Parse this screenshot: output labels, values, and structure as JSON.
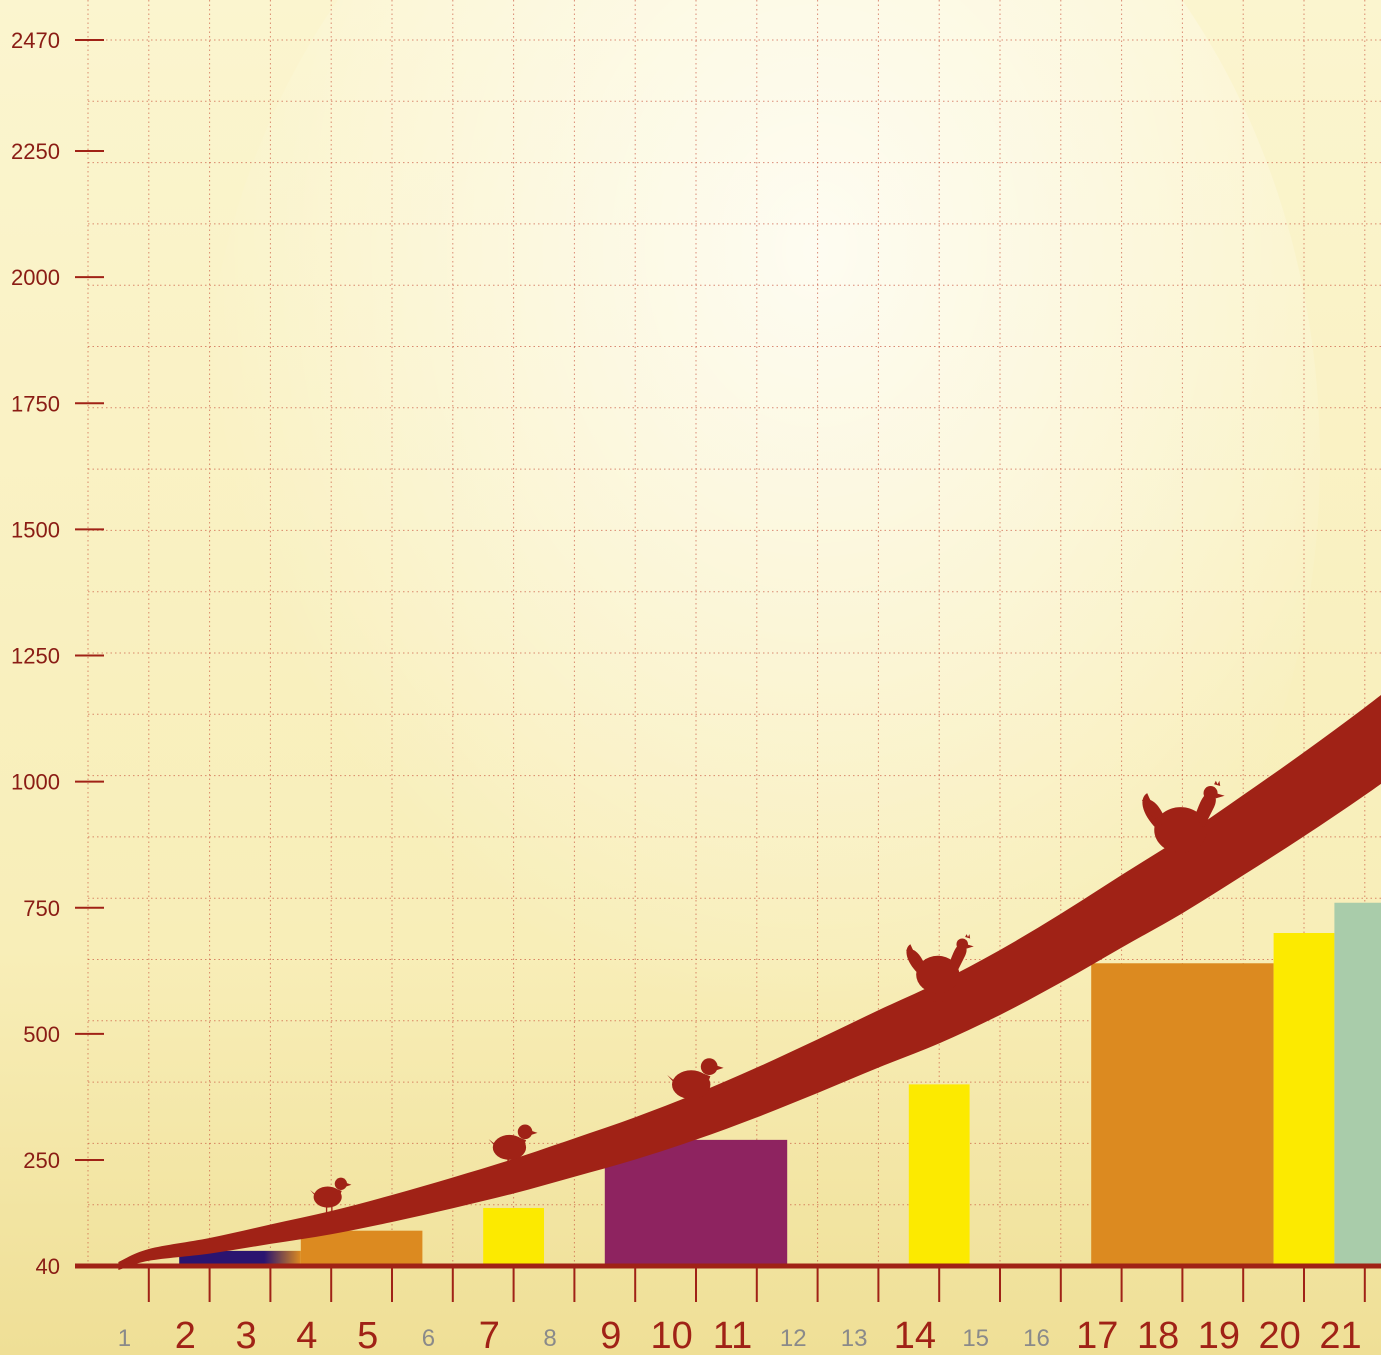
{
  "chart_data": {
    "type": "area",
    "title": "",
    "xlabel": "",
    "ylabel": "",
    "grid": true,
    "ylim": [
      40,
      2470
    ],
    "y_ticks": [
      "40",
      "250",
      "500",
      "750",
      "1000",
      "1250",
      "1500",
      "1750",
      "2000",
      "2250",
      "2470"
    ],
    "x_ticks": [
      {
        "label": "1",
        "emphasis": false
      },
      {
        "label": "2",
        "emphasis": true
      },
      {
        "label": "3",
        "emphasis": true
      },
      {
        "label": "4",
        "emphasis": true
      },
      {
        "label": "5",
        "emphasis": true
      },
      {
        "label": "6",
        "emphasis": false
      },
      {
        "label": "7",
        "emphasis": true
      },
      {
        "label": "8",
        "emphasis": false
      },
      {
        "label": "9",
        "emphasis": true
      },
      {
        "label": "10",
        "emphasis": true
      },
      {
        "label": "11",
        "emphasis": true
      },
      {
        "label": "12",
        "emphasis": false
      },
      {
        "label": "13",
        "emphasis": false
      },
      {
        "label": "14",
        "emphasis": true
      },
      {
        "label": "15",
        "emphasis": false
      },
      {
        "label": "16",
        "emphasis": false
      },
      {
        "label": "17",
        "emphasis": true
      },
      {
        "label": "18",
        "emphasis": true
      },
      {
        "label": "19",
        "emphasis": true
      },
      {
        "label": "20",
        "emphasis": true
      },
      {
        "label": "21",
        "emphasis": true
      }
    ],
    "growth_curve": {
      "x": [
        0.5,
        1,
        2,
        3,
        4,
        5,
        6,
        7,
        8,
        9,
        10,
        11,
        12,
        13,
        14,
        15,
        16,
        17,
        18,
        19,
        20,
        21,
        22
      ],
      "y": [
        40,
        62,
        80,
        103,
        126,
        154,
        185,
        218,
        255,
        293,
        336,
        384,
        436,
        490,
        542,
        602,
        670,
        743,
        815,
        894,
        975,
        1060,
        1150
      ]
    },
    "bands": [
      {
        "x_start": 1.5,
        "x_end": 3.5,
        "y": 70,
        "color": "#2a1470"
      },
      {
        "x_start": 3.5,
        "x_end": 5.5,
        "y": 110,
        "color": "#dc8a20"
      },
      {
        "x_start": 6.5,
        "x_end": 7.5,
        "y": 155,
        "color": "#fcea00"
      },
      {
        "x_start": 8.5,
        "x_end": 11.5,
        "y": 290,
        "color": "#8e2360"
      },
      {
        "x_start": 13.5,
        "x_end": 14.5,
        "y": 400,
        "color": "#fcea00"
      },
      {
        "x_start": 16.5,
        "x_end": 19.5,
        "y": 640,
        "color": "#dc8a20"
      },
      {
        "x_start": 19.5,
        "x_end": 20.5,
        "y": 700,
        "color": "#fcea00"
      },
      {
        "x_start": 20.5,
        "x_end": 22.5,
        "y": 760,
        "color": "#a9ccaa"
      }
    ],
    "markers": [
      {
        "icon": "chick-icon",
        "x": 4,
        "size": 0.55
      },
      {
        "icon": "chick-icon",
        "x": 7,
        "size": 0.65
      },
      {
        "icon": "chick-icon",
        "x": 10,
        "size": 0.75
      },
      {
        "icon": "hen-icon",
        "x": 14,
        "size": 0.9
      },
      {
        "icon": "hen-icon",
        "x": 18,
        "size": 1.1
      }
    ],
    "colors": {
      "curve": "#a02216",
      "axis": "#a02216",
      "label_emphasis": "#a02216",
      "label_muted": "#8a8a8a",
      "grid": "#c8503a",
      "background_top": "#fbf5cf",
      "background_bottom": "#f4e7a0"
    }
  }
}
